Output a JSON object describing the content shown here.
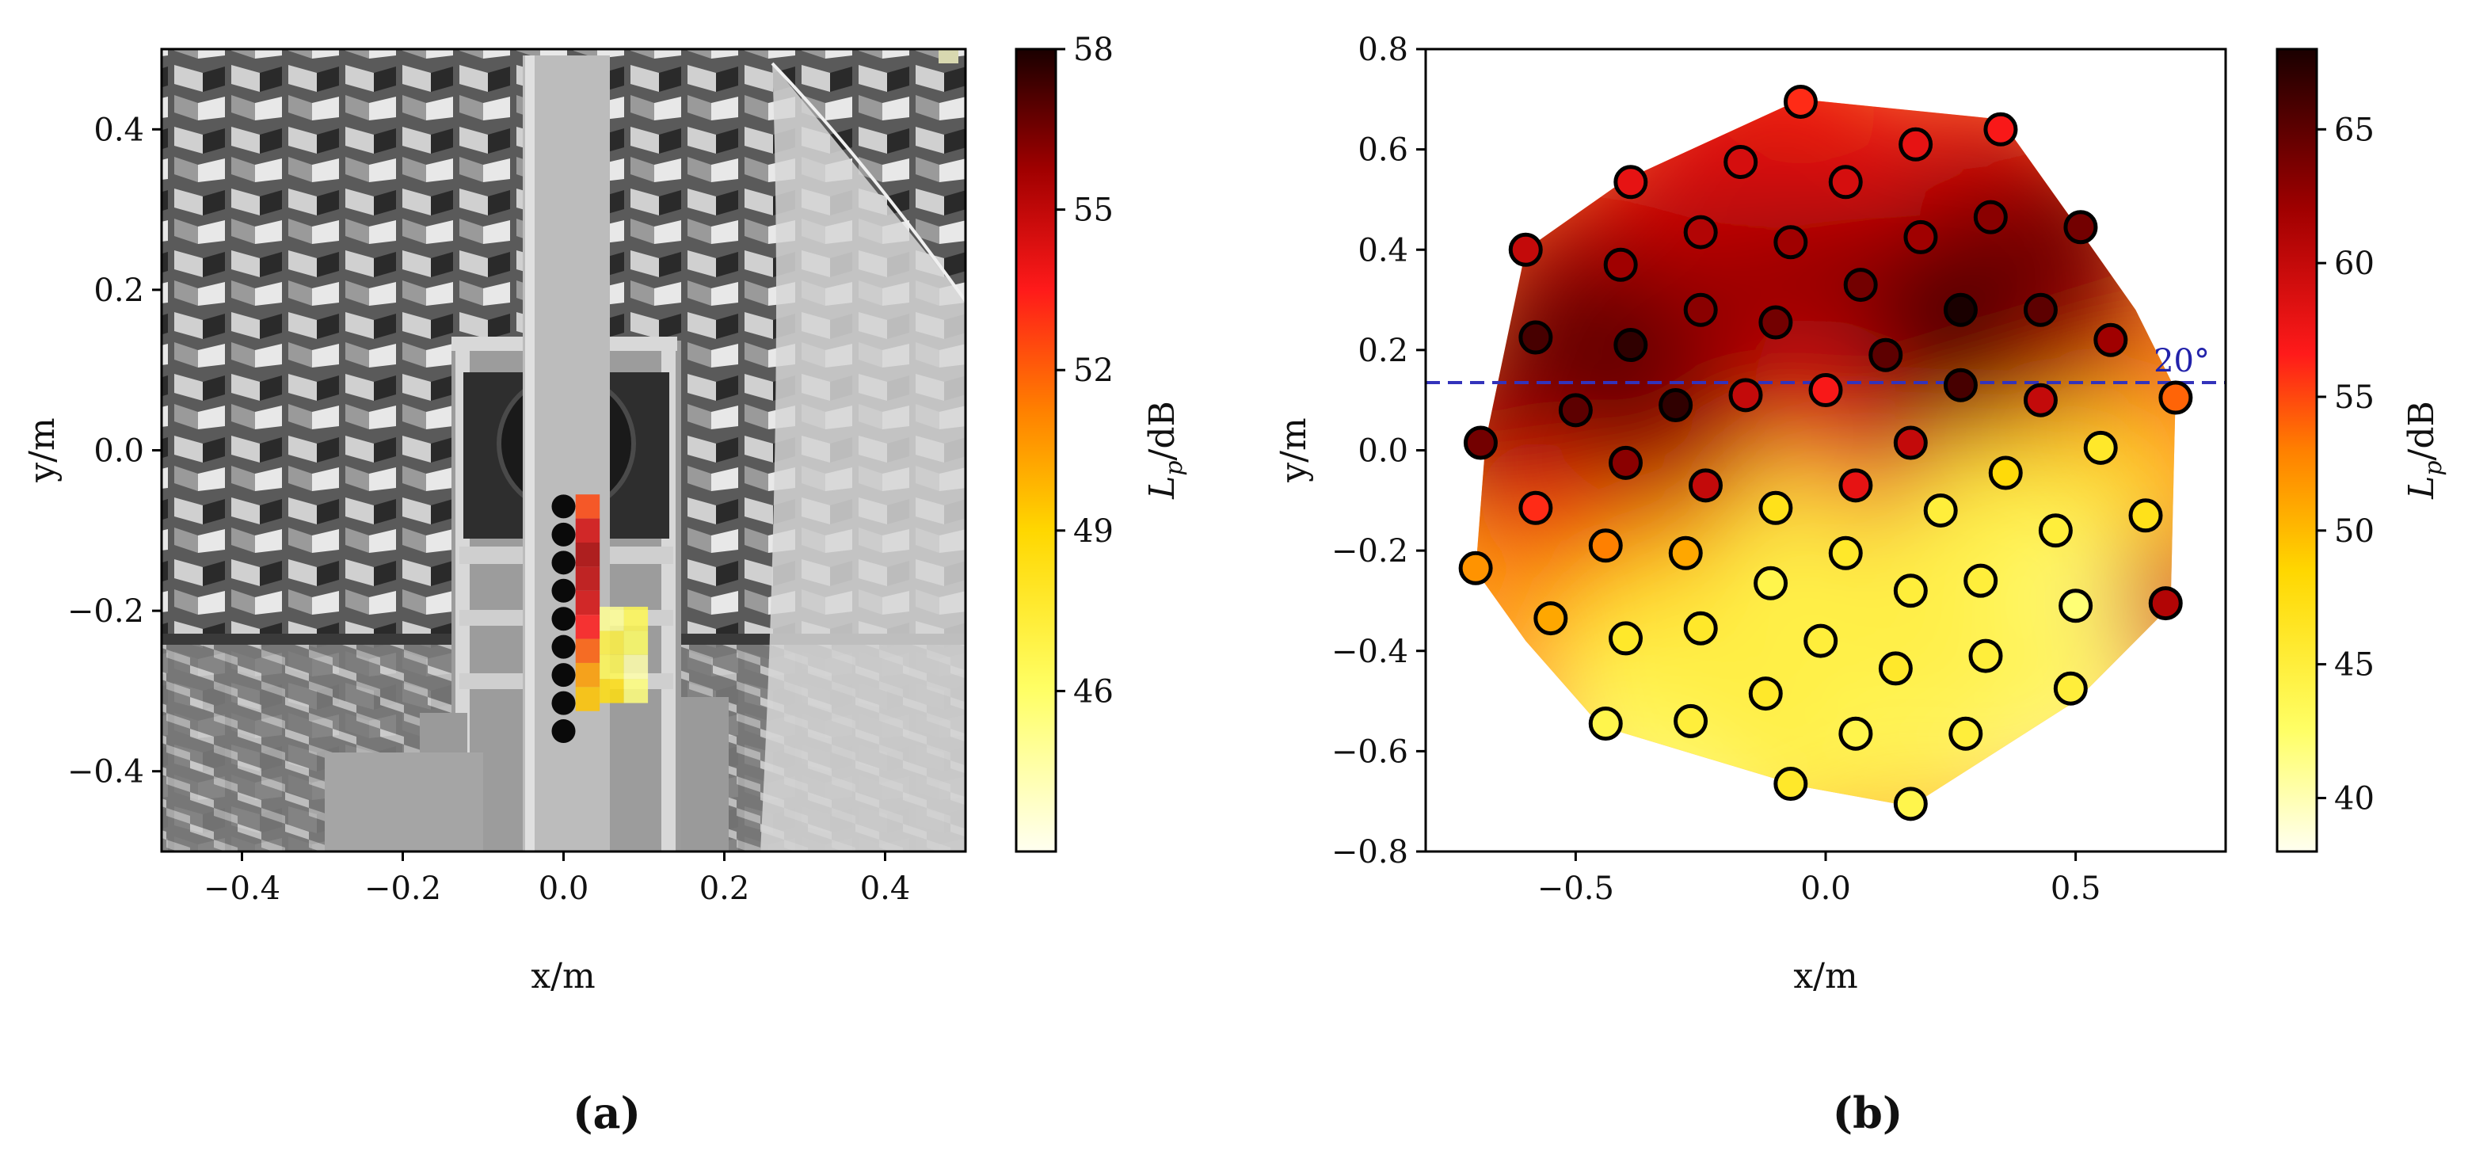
{
  "panel_a": {
    "caption": "(a)",
    "image_description_hidden": false,
    "chart_data": {
      "type": "heatmap",
      "xlabel": "x/m",
      "ylabel": "y/m",
      "xlim": [
        -0.5,
        0.5
      ],
      "ylim": [
        -0.5,
        0.5
      ],
      "xticks": [
        "−0.4",
        "−0.2",
        "0.0",
        "0.2",
        "0.4"
      ],
      "xtick_values": [
        -0.4,
        -0.2,
        0.0,
        0.2,
        0.4
      ],
      "yticks": [
        "0.4",
        "0.2",
        "0.0",
        "−0.2",
        "−0.4"
      ],
      "ytick_values": [
        0.4,
        0.2,
        0.0,
        -0.2,
        -0.4
      ],
      "colorbar": {
        "label": "L_p/dB",
        "range": [
          43,
          58
        ],
        "ticks": [
          "58",
          "55",
          "52",
          "49",
          "46"
        ],
        "tick_values": [
          58,
          55,
          52,
          49,
          46
        ]
      },
      "microphones": [
        {
          "x": 0.0,
          "y": -0.07
        },
        {
          "x": 0.0,
          "y": -0.105
        },
        {
          "x": 0.0,
          "y": -0.14
        },
        {
          "x": 0.0,
          "y": -0.175
        },
        {
          "x": 0.0,
          "y": -0.21
        },
        {
          "x": 0.0,
          "y": -0.245
        },
        {
          "x": 0.0,
          "y": -0.28
        },
        {
          "x": 0.0,
          "y": -0.315
        },
        {
          "x": 0.0,
          "y": -0.35
        }
      ],
      "map_cells": [
        {
          "x": 0.03,
          "y": -0.07,
          "v": 52.5
        },
        {
          "x": 0.03,
          "y": -0.1,
          "v": 54.5
        },
        {
          "x": 0.03,
          "y": -0.13,
          "v": 55.5
        },
        {
          "x": 0.03,
          "y": -0.16,
          "v": 55.0
        },
        {
          "x": 0.03,
          "y": -0.19,
          "v": 54.5
        },
        {
          "x": 0.03,
          "y": -0.22,
          "v": 53.5
        },
        {
          "x": 0.03,
          "y": -0.25,
          "v": 52.0
        },
        {
          "x": 0.03,
          "y": -0.28,
          "v": 50.5
        },
        {
          "x": 0.03,
          "y": -0.31,
          "v": 49.5
        },
        {
          "x": 0.06,
          "y": -0.24,
          "v": 47.0
        },
        {
          "x": 0.09,
          "y": -0.24,
          "v": 46.0
        },
        {
          "x": 0.06,
          "y": -0.27,
          "v": 46.5
        },
        {
          "x": 0.09,
          "y": -0.27,
          "v": 44.5
        },
        {
          "x": 0.06,
          "y": -0.3,
          "v": 48.5
        },
        {
          "x": 0.09,
          "y": -0.3,
          "v": 45.5
        },
        {
          "x": 0.06,
          "y": -0.21,
          "v": 45.0
        },
        {
          "x": 0.09,
          "y": -0.21,
          "v": 46.5
        }
      ]
    }
  },
  "panel_b": {
    "caption": "(b)",
    "chart_data": {
      "type": "scatter",
      "xlabel": "x/m",
      "ylabel": "y/m",
      "xlim": [
        -0.8,
        0.8
      ],
      "ylim": [
        -0.8,
        0.8
      ],
      "xticks": [
        "−0.5",
        "0.0",
        "0.5"
      ],
      "xtick_values": [
        -0.5,
        0.0,
        0.5
      ],
      "yticks": [
        "0.8",
        "0.6",
        "0.4",
        "0.2",
        "0.0",
        "−0.2",
        "−0.4",
        "−0.6",
        "−0.8"
      ],
      "ytick_values": [
        0.8,
        0.6,
        0.4,
        0.2,
        0.0,
        -0.2,
        -0.4,
        -0.6,
        -0.8
      ],
      "colorbar": {
        "label": "L_p/dB",
        "range": [
          38,
          68
        ],
        "ticks": [
          "65",
          "60",
          "55",
          "50",
          "45",
          "40"
        ],
        "tick_values": [
          65,
          60,
          55,
          50,
          45,
          40
        ]
      },
      "annotation": {
        "text": "20°",
        "line_y": 0.135
      },
      "boundary": [
        [
          -0.05,
          0.7
        ],
        [
          0.35,
          0.66
        ],
        [
          0.5,
          0.45
        ],
        [
          0.62,
          0.28
        ],
        [
          0.7,
          0.12
        ],
        [
          0.69,
          -0.31
        ],
        [
          0.5,
          -0.5
        ],
        [
          0.17,
          -0.71
        ],
        [
          -0.05,
          -0.67
        ],
        [
          -0.45,
          -0.55
        ],
        [
          -0.6,
          -0.38
        ],
        [
          -0.7,
          -0.24
        ],
        [
          -0.68,
          0.02
        ],
        [
          -0.6,
          0.4
        ],
        [
          -0.4,
          0.54
        ]
      ],
      "points": [
        {
          "x": -0.05,
          "y": 0.695,
          "v": 56
        },
        {
          "x": 0.18,
          "y": 0.61,
          "v": 58
        },
        {
          "x": 0.35,
          "y": 0.64,
          "v": 57
        },
        {
          "x": -0.39,
          "y": 0.535,
          "v": 58
        },
        {
          "x": -0.17,
          "y": 0.575,
          "v": 59
        },
        {
          "x": 0.04,
          "y": 0.535,
          "v": 59
        },
        {
          "x": -0.6,
          "y": 0.4,
          "v": 60
        },
        {
          "x": -0.41,
          "y": 0.37,
          "v": 62
        },
        {
          "x": -0.25,
          "y": 0.435,
          "v": 61
        },
        {
          "x": -0.07,
          "y": 0.415,
          "v": 62
        },
        {
          "x": 0.19,
          "y": 0.425,
          "v": 62
        },
        {
          "x": 0.33,
          "y": 0.465,
          "v": 63
        },
        {
          "x": 0.51,
          "y": 0.445,
          "v": 64
        },
        {
          "x": 0.07,
          "y": 0.33,
          "v": 64
        },
        {
          "x": -0.58,
          "y": 0.225,
          "v": 66
        },
        {
          "x": -0.39,
          "y": 0.21,
          "v": 67
        },
        {
          "x": -0.25,
          "y": 0.28,
          "v": 63
        },
        {
          "x": -0.1,
          "y": 0.255,
          "v": 64
        },
        {
          "x": 0.12,
          "y": 0.19,
          "v": 65
        },
        {
          "x": 0.27,
          "y": 0.28,
          "v": 68
        },
        {
          "x": 0.43,
          "y": 0.28,
          "v": 65
        },
        {
          "x": 0.57,
          "y": 0.22,
          "v": 62
        },
        {
          "x": -0.5,
          "y": 0.08,
          "v": 65
        },
        {
          "x": -0.3,
          "y": 0.09,
          "v": 67
        },
        {
          "x": -0.16,
          "y": 0.11,
          "v": 60
        },
        {
          "x": 0.0,
          "y": 0.12,
          "v": 57
        },
        {
          "x": 0.27,
          "y": 0.13,
          "v": 66
        },
        {
          "x": 0.43,
          "y": 0.1,
          "v": 60
        },
        {
          "x": 0.7,
          "y": 0.105,
          "v": 54
        },
        {
          "x": -0.69,
          "y": 0.015,
          "v": 64
        },
        {
          "x": -0.4,
          "y": -0.025,
          "v": 63
        },
        {
          "x": -0.24,
          "y": -0.07,
          "v": 60
        },
        {
          "x": 0.06,
          "y": -0.07,
          "v": 58
        },
        {
          "x": 0.17,
          "y": 0.015,
          "v": 60
        },
        {
          "x": 0.36,
          "y": -0.045,
          "v": 48
        },
        {
          "x": 0.55,
          "y": 0.005,
          "v": 46
        },
        {
          "x": -0.58,
          "y": -0.115,
          "v": 56
        },
        {
          "x": -0.1,
          "y": -0.115,
          "v": 47
        },
        {
          "x": 0.23,
          "y": -0.12,
          "v": 45
        },
        {
          "x": 0.64,
          "y": -0.13,
          "v": 47
        },
        {
          "x": -0.44,
          "y": -0.19,
          "v": 53
        },
        {
          "x": -0.28,
          "y": -0.205,
          "v": 51
        },
        {
          "x": 0.04,
          "y": -0.205,
          "v": 46
        },
        {
          "x": 0.46,
          "y": -0.16,
          "v": 45
        },
        {
          "x": -0.7,
          "y": -0.235,
          "v": 52
        },
        {
          "x": -0.11,
          "y": -0.265,
          "v": 44
        },
        {
          "x": 0.17,
          "y": -0.28,
          "v": 45
        },
        {
          "x": 0.31,
          "y": -0.26,
          "v": 45
        },
        {
          "x": 0.68,
          "y": -0.305,
          "v": 61
        },
        {
          "x": 0.5,
          "y": -0.31,
          "v": 42
        },
        {
          "x": -0.55,
          "y": -0.335,
          "v": 51
        },
        {
          "x": -0.4,
          "y": -0.375,
          "v": 46
        },
        {
          "x": -0.25,
          "y": -0.355,
          "v": 46
        },
        {
          "x": -0.01,
          "y": -0.38,
          "v": 45
        },
        {
          "x": 0.32,
          "y": -0.41,
          "v": 45
        },
        {
          "x": 0.14,
          "y": -0.435,
          "v": 46
        },
        {
          "x": -0.12,
          "y": -0.485,
          "v": 46
        },
        {
          "x": 0.49,
          "y": -0.475,
          "v": 45
        },
        {
          "x": -0.44,
          "y": -0.545,
          "v": 44
        },
        {
          "x": -0.27,
          "y": -0.54,
          "v": 45
        },
        {
          "x": 0.06,
          "y": -0.565,
          "v": 44
        },
        {
          "x": 0.28,
          "y": -0.565,
          "v": 45
        },
        {
          "x": -0.07,
          "y": -0.665,
          "v": 46
        },
        {
          "x": 0.17,
          "y": -0.705,
          "v": 44
        }
      ],
      "field_blobs": [
        {
          "x": 0.12,
          "y": 0.25,
          "v": 64,
          "r": 0.25
        },
        {
          "x": -0.35,
          "y": 0.2,
          "v": 64,
          "r": 0.3
        },
        {
          "x": 0.3,
          "y": 0.35,
          "v": 63,
          "r": 0.3
        },
        {
          "x": -0.45,
          "y": 0.0,
          "v": 60,
          "r": 0.3
        },
        {
          "x": 0.1,
          "y": -0.3,
          "v": 40,
          "r": 0.35
        },
        {
          "x": 0.35,
          "y": -0.35,
          "v": 40,
          "r": 0.35
        },
        {
          "x": -0.2,
          "y": -0.45,
          "v": 41,
          "r": 0.35
        },
        {
          "x": -0.1,
          "y": 0.5,
          "v": 58,
          "r": 0.3
        }
      ]
    }
  }
}
